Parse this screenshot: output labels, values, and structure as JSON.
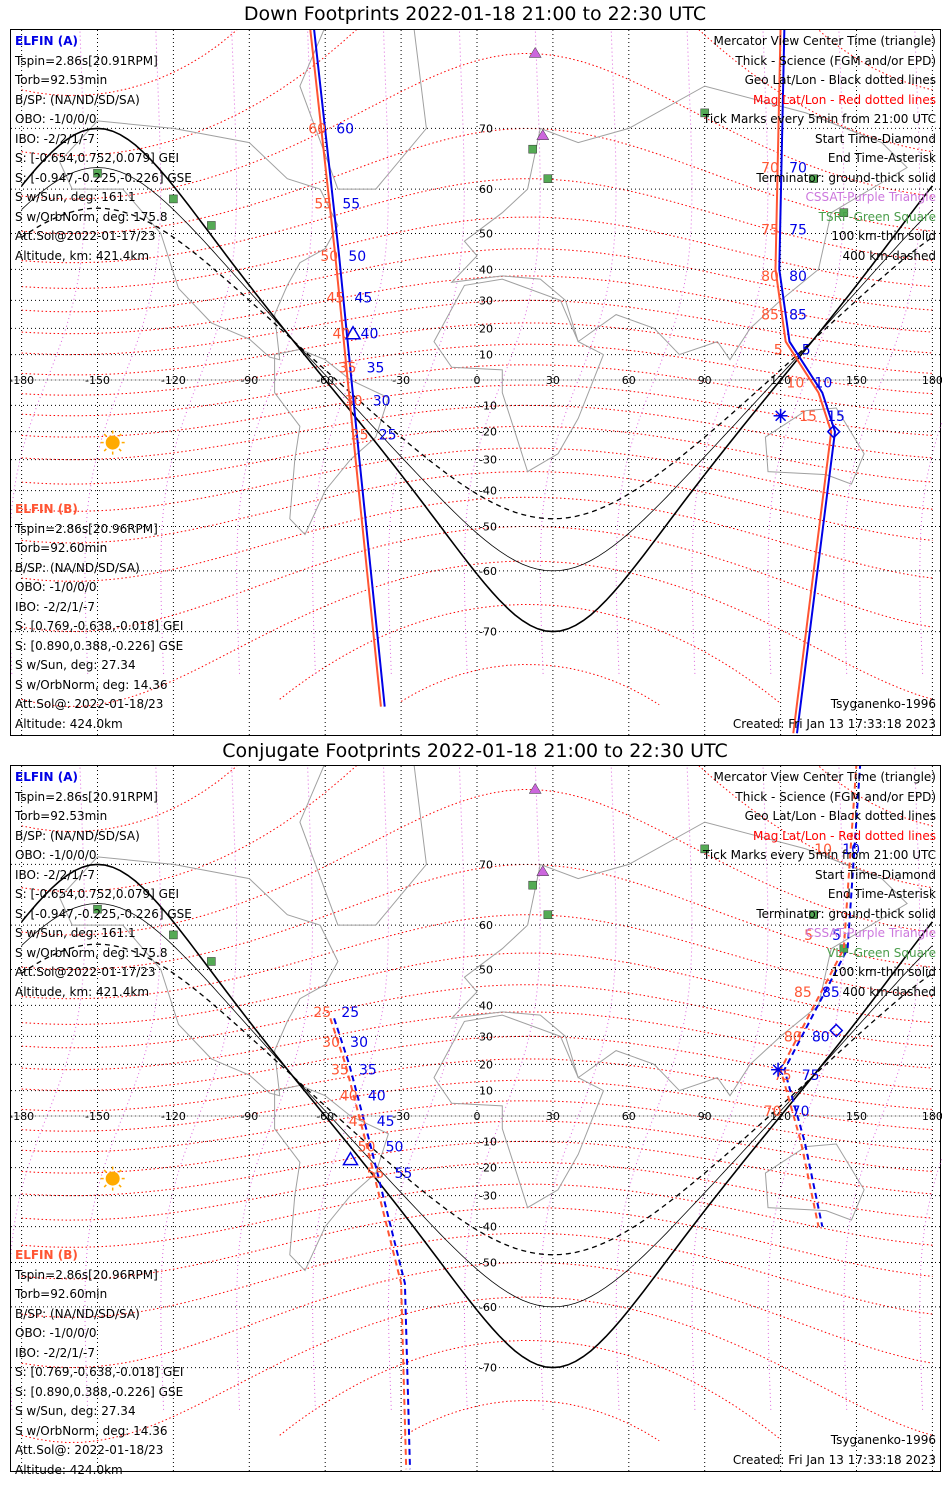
{
  "panels": [
    {
      "title": "Down Footprints 2022-01-18 21:00 to 22:30 UTC",
      "elfin_a": [
        "ELFIN (A)",
        "Tspin=2.86s[20.91RPM]",
        "Torb=92.53min",
        "B/SP: (NA/ND/SD/SA)",
        "OBO: -1/0/0/0",
        "IBO: -2/2/1/-7",
        "S: [-0.654,0.752,0.079] GEI",
        "S: [-0.947,-0.225,-0.226] GSE",
        "S w/Sun, deg: 161.1",
        "S w/OrbNorm, deg: 175.8",
        "Att.Sol@2022-01-17/23",
        "Altitude, km: 421.4km"
      ],
      "elfin_b": [
        "ELFIN (B)",
        "Tspin=2.86s[20.96RPM]",
        "Torb=92.60min",
        "B/SP: (NA/ND/SD/SA)",
        "OBO: -1/0/0/0",
        "IBO: -2/2/1/-7",
        "S: [0.769,-0.638,-0.018] GEI",
        "S: [0.890,0.388,-0.226] GSE",
        "S w/Sun, deg: 27.34",
        "S w/OrbNorm, deg: 14.36",
        "Att.Sol@: 2022-01-18/23",
        "Altitude: 424.0km"
      ],
      "legend": [
        {
          "text": "Mercator View Center Time (triangle)",
          "color": "#000000"
        },
        {
          "text": "Thick - Science (FGM and/or EPD)",
          "color": "#000000"
        },
        {
          "text": "Geo Lat/Lon - Black dotted lines",
          "color": "#000000"
        },
        {
          "text": "Mag Lat/Lon - Red dotted lines",
          "color": "#ff0000"
        },
        {
          "text": "Tick Marks every 5min from 21:00 UTC",
          "color": "#000000"
        },
        {
          "text": "Start Time-Diamond",
          "color": "#000000"
        },
        {
          "text": "End Time-Asterisk",
          "color": "#000000"
        },
        {
          "text": "Terminator: ground-thick solid",
          "color": "#000000"
        },
        {
          "text": "CSSAT-Purple Triangle",
          "color": "#cc77dd"
        },
        {
          "text": "TSRF-Green Square",
          "color": "#4a9d4a"
        },
        {
          "text": "100 km-thin solid",
          "color": "#000000"
        },
        {
          "text": "400 km-dashed",
          "color": "#000000"
        }
      ],
      "model": "Tsyganenko-1996",
      "created": "Created: Fri Jan 13 17:33:18 2023",
      "a_ticks": [
        {
          "label": "60",
          "lat": 60
        },
        {
          "label": "55",
          "lat": 55
        },
        {
          "label": "50",
          "lat": 50
        },
        {
          "label": "45",
          "lat": 45
        },
        {
          "label": "40",
          "lat": 40
        },
        {
          "label": "35",
          "lat": 35
        },
        {
          "label": "30",
          "lat": 30
        },
        {
          "label": "25",
          "lat": 25
        }
      ],
      "b_ticks": [
        {
          "label": "70",
          "lat": 70
        },
        {
          "label": "75",
          "lat": 75
        },
        {
          "label": "80",
          "lat": 80
        },
        {
          "label": "85",
          "lat": 85
        },
        {
          "label": "5",
          "lat": 5
        },
        {
          "label": "10",
          "lat": 10
        },
        {
          "label": "15",
          "lat": 15
        }
      ]
    },
    {
      "title": "Conjugate Footprints 2022-01-18 21:00 to 22:30 UTC",
      "elfin_a": [
        "ELFIN (A)",
        "Tspin=2.86s[20.91RPM]",
        "Torb=92.53min",
        "B/SP: (NA/ND/SD/SA)",
        "OBO: -1/0/0/0",
        "IBO: -2/2/1/-7",
        "S: [-0.654,0.752,0.079] GEI",
        "S: [-0.947,-0.225,-0.226] GSE",
        "S w/Sun, deg: 161.1",
        "S w/OrbNorm, deg: 175.8",
        "Att.Sol@2022-01-17/23",
        "Altitude, km: 421.4km"
      ],
      "elfin_b": [
        "ELFIN (B)",
        "Tspin=2.86s[20.96RPM]",
        "Torb=92.60min",
        "B/SP: (NA/ND/SD/SA)",
        "OBO: -1/0/0/0",
        "IBO: -2/2/1/-7",
        "S: [0.769,-0.638,-0.018] GEI",
        "S: [0.890,0.388,-0.226] GSE",
        "S w/Sun, deg: 27.34",
        "S w/OrbNorm, deg: 14.36",
        "Att.Sol@: 2022-01-18/23",
        "Altitude: 424.0km"
      ],
      "legend": [
        {
          "text": "Mercator View Center Time (triangle)",
          "color": "#000000"
        },
        {
          "text": "Thick - Science (FGM and/or EPD)",
          "color": "#000000"
        },
        {
          "text": "Geo Lat/Lon - Black dotted lines",
          "color": "#000000"
        },
        {
          "text": "Mag Lat/Lon - Red dotted lines",
          "color": "#ff0000"
        },
        {
          "text": "Tick Marks every 5min from 21:00 UTC",
          "color": "#000000"
        },
        {
          "text": "Start Time-Diamond",
          "color": "#000000"
        },
        {
          "text": "End Time-Asterisk",
          "color": "#000000"
        },
        {
          "text": "Terminator: ground-thick solid",
          "color": "#000000"
        },
        {
          "text": "CSSAT-Purple Triangle",
          "color": "#cc77dd"
        },
        {
          "text": "VLF-Green Square",
          "color": "#4a9d4a"
        },
        {
          "text": "100 km-thin solid",
          "color": "#000000"
        },
        {
          "text": "400 km-dashed",
          "color": "#000000"
        }
      ],
      "model": "Tsyganenko-1996",
      "created": "Created: Fri Jan 13 17:33:18 2023",
      "a_ticks": [
        {
          "label": "25",
          "lat": 25
        },
        {
          "label": "30",
          "lat": 30
        },
        {
          "label": "35",
          "lat": 35
        },
        {
          "label": "40",
          "lat": 40
        },
        {
          "label": "45",
          "lat": 45
        },
        {
          "label": "50",
          "lat": 50
        },
        {
          "label": "55",
          "lat": 55
        }
      ],
      "b_ticks": [
        {
          "label": "10",
          "lat": 10
        },
        {
          "label": "5",
          "lat": 5
        },
        {
          "label": "85",
          "lat": 85
        },
        {
          "label": "80",
          "lat": 80
        },
        {
          "label": "75",
          "lat": 75
        },
        {
          "label": "70",
          "lat": 70
        }
      ]
    }
  ],
  "axes": {
    "lon_labels": [
      "-180",
      "-150",
      "-120",
      "-90",
      "-60",
      "-30",
      "0",
      "30",
      "60",
      "90",
      "120",
      "150",
      "180"
    ],
    "lat_labels": [
      "70",
      "60",
      "50",
      "40",
      "30",
      "20",
      "10",
      "-10",
      "-20",
      "-30",
      "-40",
      "-50",
      "-60",
      "-70"
    ]
  },
  "colors": {
    "elfin_a": "#0000e6",
    "elfin_b": "#ff5533",
    "mag_grid": "#ff0000",
    "geo_grid": "#000000",
    "sun": "#ffaa00",
    "station": "#55aa55",
    "cssat": "#cc66dd"
  }
}
